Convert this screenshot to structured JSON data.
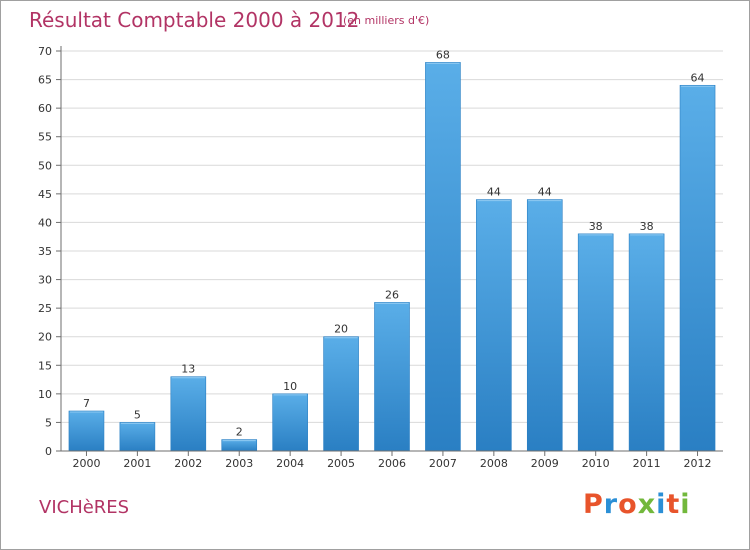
{
  "header": {
    "title": "Résultat Comptable 2000 à 2012",
    "subtitle": "(en milliers d'€)"
  },
  "footer": {
    "place": "VICHèRES",
    "logo": {
      "text": "Proxiti",
      "colors": [
        "#e8542b",
        "#2b8fd6",
        "#e8542b",
        "#72b83c",
        "#2b8fd6",
        "#e8542b",
        "#72b83c"
      ]
    }
  },
  "colors": {
    "bar_light": "#5aaee8",
    "bar_dark": "#2a7fc3",
    "grid": "#d9d9d9",
    "axis": "#6e6e6e",
    "text": "#333333"
  },
  "chart_data": {
    "type": "bar",
    "title": "Résultat Comptable 2000 à 2012",
    "subtitle": "(en milliers d'€)",
    "xlabel": "",
    "ylabel": "",
    "categories": [
      "2000",
      "2001",
      "2002",
      "2003",
      "2004",
      "2005",
      "2006",
      "2007",
      "2008",
      "2009",
      "2010",
      "2011",
      "2012"
    ],
    "values": [
      7,
      5,
      13,
      2,
      10,
      20,
      26,
      68,
      44,
      44,
      38,
      38,
      64
    ],
    "ylim": [
      0,
      70
    ],
    "yticks": [
      0,
      5,
      10,
      15,
      20,
      25,
      30,
      35,
      40,
      45,
      50,
      55,
      60,
      65,
      70
    ],
    "grid": true,
    "data_labels": true
  }
}
